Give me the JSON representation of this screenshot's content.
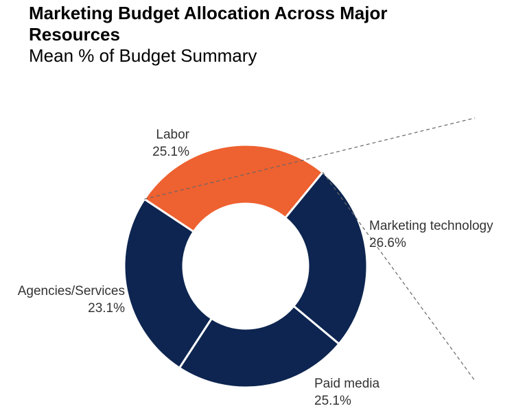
{
  "chart_data": {
    "type": "pie",
    "variant": "donut",
    "title": "Marketing Budget Allocation Across Major Resources",
    "subtitle": "Mean % of Budget Summary",
    "categories": [
      "Marketing technology",
      "Paid media",
      "Agencies/Services",
      "Labor"
    ],
    "values": [
      26.6,
      25.1,
      23.1,
      25.1
    ],
    "value_labels": [
      "26.6%",
      "25.1%",
      "23.1%",
      "25.1%"
    ],
    "highlight": "Marketing technology",
    "colors": {
      "highlight": "#EE6130",
      "base": "#0D2550"
    }
  }
}
